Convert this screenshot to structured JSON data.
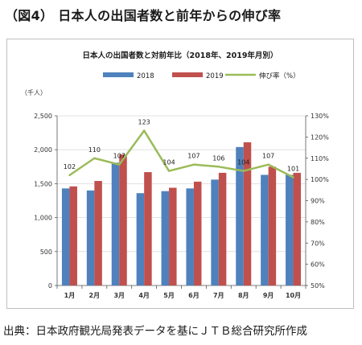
{
  "figure_title": "（図4） 日本人の出国者数と前年からの伸び率",
  "source_note": "出典：日本政府観光局発表データを基にＪＴＢ総合研究所作成",
  "colors": {
    "series_2018": "#4f81bd",
    "series_2019": "#c0504d",
    "growth": "#9bbb59",
    "grid": "#d9d9d9"
  },
  "chart_data": {
    "type": "bar",
    "title": "日本人の出国者数と対前年比（2018年、2019年月別）",
    "y_unit_label": "（千人）",
    "categories": [
      "1月",
      "2月",
      "3月",
      "4月",
      "5月",
      "6月",
      "7月",
      "8月",
      "9月",
      "10月"
    ],
    "series": [
      {
        "name": "2018",
        "type": "bar",
        "axis": "left",
        "values": [
          1430,
          1400,
          1810,
          1360,
          1390,
          1430,
          1560,
          2040,
          1630,
          1630
        ]
      },
      {
        "name": "2019",
        "type": "bar",
        "axis": "left",
        "values": [
          1460,
          1540,
          1930,
          1670,
          1440,
          1530,
          1660,
          2110,
          1750,
          1660
        ]
      },
      {
        "name": "伸び率（%）",
        "type": "line",
        "axis": "right",
        "values": [
          102,
          110,
          107,
          123,
          104,
          107,
          106,
          104,
          107,
          101
        ]
      }
    ],
    "ylim_left": [
      0,
      2500
    ],
    "yticks_left": [
      "0",
      "500",
      "1,000",
      "1,500",
      "2,000",
      "2,500"
    ],
    "ylim_right": [
      50,
      130
    ],
    "yticks_right": [
      "50%",
      "60%",
      "70%",
      "80%",
      "90%",
      "100%",
      "110%",
      "120%",
      "130%"
    ],
    "grid": true,
    "legend_position": "top-center"
  }
}
